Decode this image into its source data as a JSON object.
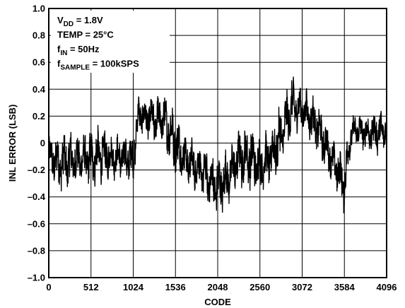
{
  "chart_data": {
    "type": "line",
    "title": "",
    "xlabel": "CODE",
    "ylabel": "INL ERROR (LSB)",
    "xlim": [
      0,
      4096
    ],
    "ylim": [
      -1.0,
      1.0
    ],
    "x_ticks": [
      0,
      512,
      1024,
      1536,
      2048,
      2560,
      3072,
      3584,
      4096
    ],
    "x_tick_labels": [
      "0",
      "512",
      "1024",
      "1536",
      "2048",
      "2560",
      "3072",
      "3584",
      "4096"
    ],
    "y_ticks": [
      -1.0,
      -0.8,
      -0.6,
      -0.4,
      -0.2,
      0,
      0.2,
      0.4,
      0.6,
      0.8,
      1.0
    ],
    "y_tick_labels": [
      "–1.0",
      "–0.8",
      "–0.6",
      "–0.4",
      "–0.2",
      "0",
      "0.2",
      "0.4",
      "0.6",
      "0.8",
      "1.0"
    ],
    "grid": true,
    "line_color": "#000000",
    "series": [
      {
        "name": "",
        "envelope_x": [
          0,
          128,
          256,
          384,
          512,
          640,
          768,
          896,
          1024,
          1090,
          1152,
          1280,
          1408,
          1536,
          1664,
          1792,
          1920,
          2048,
          2176,
          2304,
          2432,
          2560,
          2688,
          2816,
          2944,
          3072,
          3200,
          3328,
          3456,
          3584,
          3650,
          3712,
          3840,
          3968,
          4096
        ],
        "envelope_top": [
          0.1,
          0.12,
          0.15,
          0.1,
          0.15,
          0.18,
          0.1,
          0.1,
          0.12,
          0.4,
          0.38,
          0.4,
          0.42,
          0.3,
          0.1,
          0.05,
          0.0,
          -0.05,
          0.0,
          0.15,
          0.2,
          0.1,
          0.15,
          0.35,
          0.55,
          0.45,
          0.4,
          0.25,
          0.05,
          -0.05,
          0.2,
          0.25,
          0.25,
          0.28,
          0.3
        ],
        "envelope_bottom": [
          -0.3,
          -0.42,
          -0.4,
          -0.35,
          -0.38,
          -0.35,
          -0.3,
          -0.32,
          -0.35,
          0.05,
          0.0,
          -0.05,
          -0.1,
          -0.3,
          -0.35,
          -0.4,
          -0.5,
          -0.62,
          -0.5,
          -0.38,
          -0.4,
          -0.45,
          -0.35,
          -0.25,
          0.0,
          0.05,
          -0.05,
          -0.2,
          -0.35,
          -0.57,
          -0.15,
          -0.05,
          -0.1,
          -0.12,
          -0.1
        ]
      }
    ],
    "annotations": [
      {
        "main": "V",
        "sub": "DD",
        "rest": " = 1.8V"
      },
      {
        "main": "TEMP = 25°C",
        "sub": "",
        "rest": ""
      },
      {
        "main": "f",
        "sub": "IN",
        "rest": " = 50Hz"
      },
      {
        "main": "f",
        "sub": "SAMPLE",
        "rest": " = 100kSPS"
      }
    ]
  }
}
